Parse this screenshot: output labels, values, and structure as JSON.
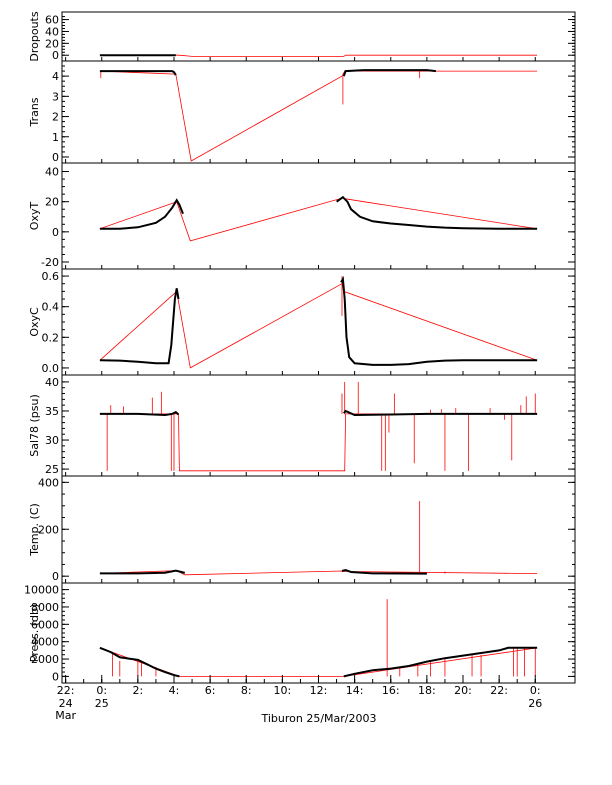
{
  "chart_data": {
    "type": "line",
    "xlabel": "Tiburon 25/Mar/2003",
    "x_ticks": [
      {
        "hour": -2,
        "label": "22:",
        "sublabels": [
          "24",
          "Mar"
        ]
      },
      {
        "hour": 0,
        "label": "0:",
        "sublabels": [
          "25"
        ]
      },
      {
        "hour": 2,
        "label": "2:"
      },
      {
        "hour": 4,
        "label": "4:"
      },
      {
        "hour": 6,
        "label": "6:"
      },
      {
        "hour": 8,
        "label": "8:"
      },
      {
        "hour": 10,
        "label": "10:"
      },
      {
        "hour": 12,
        "label": "12:"
      },
      {
        "hour": 14,
        "label": "14:"
      },
      {
        "hour": 16,
        "label": "16:"
      },
      {
        "hour": 18,
        "label": "18:"
      },
      {
        "hour": 20,
        "label": "20:"
      },
      {
        "hour": 22,
        "label": "22:"
      },
      {
        "hour": 24,
        "label": "0:",
        "sublabels": [
          "26"
        ]
      }
    ],
    "xlim": [
      -2.2,
      26.2
    ],
    "colors": {
      "data": "#000000",
      "gap_interpolation": "#ff0000"
    },
    "panels": [
      {
        "ylabel": "Dropouts",
        "ylim": [
          -3,
          66
        ],
        "yticks": [
          0,
          20,
          40,
          60
        ],
        "ytick_labels": [
          "0",
          "20",
          "40",
          "60"
        ],
        "minor_step": 5,
        "data": [
          [
            -0.1,
            0
          ],
          [
            4.1,
            0
          ],
          [
            13.4,
            0
          ],
          [
            24.1,
            0
          ]
        ],
        "red": [
          [
            -0.1,
            0
          ],
          [
            4.3,
            0
          ],
          [
            5.0,
            -2
          ],
          [
            13.4,
            -2
          ],
          [
            13.5,
            0
          ],
          [
            24.1,
            0
          ]
        ],
        "spikes": []
      },
      {
        "ylabel": "Trans",
        "ylim": [
          -0.1,
          4.55
        ],
        "yticks": [
          0,
          1,
          2,
          3,
          4
        ],
        "ytick_labels": [
          "0",
          "1",
          "2",
          "3",
          "4"
        ],
        "minor_step": 0.25,
        "data": [
          [
            -0.1,
            4.25
          ],
          [
            3.9,
            4.25
          ],
          [
            4.0,
            4.2
          ],
          [
            4.1,
            4.05
          ],
          [
            13.4,
            4.0
          ],
          [
            13.5,
            4.25
          ],
          [
            14.5,
            4.3
          ],
          [
            18,
            4.3
          ],
          [
            18.5,
            4.25
          ],
          [
            24.1,
            4.25
          ]
        ],
        "red": [
          [
            -0.1,
            4.25
          ],
          [
            4.1,
            4.1
          ],
          [
            4.95,
            -0.2
          ],
          [
            13.3,
            4.0
          ],
          [
            13.45,
            4.25
          ],
          [
            24.1,
            4.25
          ]
        ],
        "spikes": [
          [
            -0.05,
            3.9,
            4.25
          ],
          [
            13.35,
            2.6,
            4.0
          ],
          [
            17.6,
            3.9,
            4.3
          ]
        ]
      },
      {
        "ylabel": "OxyT",
        "ylim": [
          -22,
          43
        ],
        "yticks": [
          -20,
          0,
          20,
          40
        ],
        "ytick_labels": [
          "-20",
          "0",
          "20",
          "40"
        ],
        "minor_step": 5,
        "data": [
          [
            -0.1,
            2
          ],
          [
            1.0,
            2.1
          ],
          [
            2.0,
            3
          ],
          [
            3.0,
            6
          ],
          [
            3.5,
            10
          ],
          [
            3.9,
            16
          ],
          [
            4.15,
            21
          ],
          [
            4.3,
            18
          ],
          [
            4.5,
            12
          ],
          [
            13.0,
            20
          ],
          [
            13.35,
            23
          ],
          [
            13.6,
            20
          ],
          [
            13.8,
            15
          ],
          [
            14.3,
            10
          ],
          [
            15.0,
            7
          ],
          [
            16.0,
            5.5
          ],
          [
            17.0,
            4.5
          ],
          [
            18.0,
            3.5
          ],
          [
            19.0,
            2.8
          ],
          [
            20.0,
            2.4
          ],
          [
            22.0,
            2.1
          ],
          [
            24.1,
            2
          ]
        ],
        "red": [
          [
            -0.1,
            2
          ],
          [
            4.15,
            20
          ],
          [
            4.9,
            -6
          ],
          [
            13.35,
            22.5
          ],
          [
            13.45,
            22
          ],
          [
            24.1,
            2
          ]
        ],
        "spikes": []
      },
      {
        "ylabel": "OxyC",
        "ylim": [
          -0.02,
          0.62
        ],
        "yticks": [
          0.0,
          0.2,
          0.4,
          0.6
        ],
        "ytick_labels": [
          "0.0",
          "0.2",
          "0.4",
          "0.6"
        ],
        "minor_step": 0.05,
        "data": [
          [
            -0.1,
            0.05
          ],
          [
            1.0,
            0.048
          ],
          [
            2.0,
            0.04
          ],
          [
            3.0,
            0.03
          ],
          [
            3.7,
            0.03
          ],
          [
            3.85,
            0.15
          ],
          [
            3.95,
            0.3
          ],
          [
            4.05,
            0.45
          ],
          [
            4.15,
            0.52
          ],
          [
            4.25,
            0.45
          ],
          [
            13.25,
            0.56
          ],
          [
            13.35,
            0.58
          ],
          [
            13.45,
            0.45
          ],
          [
            13.55,
            0.2
          ],
          [
            13.7,
            0.07
          ],
          [
            14.0,
            0.03
          ],
          [
            15.0,
            0.02
          ],
          [
            16.0,
            0.02
          ],
          [
            17.0,
            0.025
          ],
          [
            18.0,
            0.04
          ],
          [
            19.0,
            0.048
          ],
          [
            20.0,
            0.05
          ],
          [
            24.1,
            0.05
          ]
        ],
        "red": [
          [
            -0.1,
            0.05
          ],
          [
            4.15,
            0.5
          ],
          [
            4.9,
            0.0
          ],
          [
            13.3,
            0.55
          ],
          [
            13.4,
            0.5
          ],
          [
            24.1,
            0.05
          ]
        ],
        "spikes": [
          [
            13.3,
            0.34,
            0.6
          ]
        ]
      },
      {
        "ylabel": "Sal78 (psu)",
        "ylim": [
          24.5,
          40.5
        ],
        "yticks": [
          25,
          30,
          35,
          40
        ],
        "ytick_labels": [
          "25",
          "30",
          "35",
          "40"
        ],
        "minor_step": 1,
        "data": [
          [
            -0.1,
            34.5
          ],
          [
            2.0,
            34.5
          ],
          [
            3.5,
            34.3
          ],
          [
            3.9,
            34.5
          ],
          [
            4.1,
            34.8
          ],
          [
            4.25,
            34.4
          ],
          [
            13.4,
            34.6
          ],
          [
            13.5,
            35.0
          ],
          [
            14.0,
            34.3
          ],
          [
            16.0,
            34.4
          ],
          [
            18.0,
            34.5
          ],
          [
            20.0,
            34.5
          ],
          [
            24.1,
            34.5
          ]
        ],
        "red": [
          [
            -0.1,
            34.5
          ],
          [
            4.25,
            34.5
          ],
          [
            4.3,
            24.7
          ],
          [
            13.45,
            24.7
          ],
          [
            13.5,
            34.5
          ],
          [
            24.1,
            34.5
          ]
        ],
        "spikes": [
          [
            0.3,
            24.7,
            34.5
          ],
          [
            0.5,
            34.5,
            36.0
          ],
          [
            1.2,
            34.5,
            35.8
          ],
          [
            2.8,
            34.5,
            37.3
          ],
          [
            3.3,
            34.5,
            38.3
          ],
          [
            3.85,
            24.7,
            34.5
          ],
          [
            4.0,
            24.7,
            34.5
          ],
          [
            13.3,
            34.5,
            38.0
          ],
          [
            13.45,
            34.5,
            40.0
          ],
          [
            14.2,
            34.5,
            40.0
          ],
          [
            15.5,
            24.7,
            34.5
          ],
          [
            15.7,
            24.7,
            34.5
          ],
          [
            15.9,
            31.3,
            34.5
          ],
          [
            16.2,
            34.5,
            38.0
          ],
          [
            17.3,
            26.0,
            34.5
          ],
          [
            18.2,
            34.5,
            35.2
          ],
          [
            18.8,
            34.5,
            35.3
          ],
          [
            19.0,
            24.7,
            34.5
          ],
          [
            19.6,
            34.5,
            35.5
          ],
          [
            20.3,
            24.7,
            34.5
          ],
          [
            21.5,
            34.5,
            35.5
          ],
          [
            22.3,
            33.5,
            34.5
          ],
          [
            22.7,
            26.5,
            34.5
          ],
          [
            23.2,
            34.5,
            36.0
          ],
          [
            23.5,
            34.5,
            37.5
          ],
          [
            24.0,
            34.5,
            38.0
          ]
        ]
      },
      {
        "ylabel": "Temp. (C)",
        "ylim": [
          -12,
          410
        ],
        "yticks": [
          0,
          200,
          400
        ],
        "ytick_labels": [
          "0",
          "200",
          "400"
        ],
        "minor_step": 50,
        "data": [
          [
            -0.1,
            12
          ],
          [
            2.0,
            12
          ],
          [
            3.5,
            15
          ],
          [
            4.1,
            24
          ],
          [
            4.3,
            20
          ],
          [
            4.6,
            14
          ],
          [
            13.3,
            22
          ],
          [
            13.5,
            26
          ],
          [
            13.8,
            18
          ],
          [
            15.0,
            12
          ],
          [
            18.0,
            11
          ],
          [
            24.1,
            11
          ]
        ],
        "red": [
          [
            -0.1,
            12
          ],
          [
            4.15,
            24
          ],
          [
            4.6,
            6
          ],
          [
            13.3,
            22
          ],
          [
            13.45,
            20
          ],
          [
            24.1,
            11
          ]
        ],
        "spikes": [
          [
            17.6,
            11,
            320
          ],
          [
            19.0,
            11,
            20
          ]
        ]
      },
      {
        "ylabel": "Press. (db)",
        "ylim": [
          -300,
          10300
        ],
        "yticks": [
          0,
          2000,
          4000,
          6000,
          8000,
          10000
        ],
        "ytick_labels": [
          "0",
          "2000",
          "4000",
          "6000",
          "8000",
          "10000"
        ],
        "minor_step": 500,
        "data": [
          [
            -0.1,
            3300
          ],
          [
            0.5,
            2800
          ],
          [
            1.0,
            2200
          ],
          [
            2.0,
            1900
          ],
          [
            2.5,
            1400
          ],
          [
            3.0,
            900
          ],
          [
            3.5,
            500
          ],
          [
            4.0,
            150
          ],
          [
            4.3,
            0
          ],
          [
            13.4,
            0
          ],
          [
            14.0,
            300
          ],
          [
            15.0,
            700
          ],
          [
            16.0,
            900
          ],
          [
            17.0,
            1200
          ],
          [
            18.0,
            1700
          ],
          [
            19.0,
            2100
          ],
          [
            20.0,
            2400
          ],
          [
            21.0,
            2700
          ],
          [
            22.0,
            3000
          ],
          [
            22.5,
            3300
          ],
          [
            24.1,
            3300
          ]
        ],
        "red": [
          [
            -0.1,
            3300
          ],
          [
            4.3,
            0
          ],
          [
            13.4,
            0
          ],
          [
            24.1,
            3300
          ]
        ],
        "spikes": [
          [
            0.6,
            0,
            2800
          ],
          [
            1.0,
            0,
            1800
          ],
          [
            2.0,
            0,
            1900
          ],
          [
            2.2,
            0,
            1700
          ],
          [
            3.0,
            0,
            1100
          ],
          [
            15.8,
            0,
            8900
          ],
          [
            16.5,
            0,
            1000
          ],
          [
            17.5,
            0,
            1500
          ],
          [
            18.2,
            0,
            1700
          ],
          [
            19.0,
            0,
            2100
          ],
          [
            20.5,
            0,
            2500
          ],
          [
            21.0,
            0,
            2500
          ],
          [
            22.8,
            0,
            3300
          ],
          [
            23.0,
            0,
            3300
          ],
          [
            23.4,
            0,
            3300
          ],
          [
            24.0,
            0,
            3300
          ]
        ]
      }
    ]
  }
}
